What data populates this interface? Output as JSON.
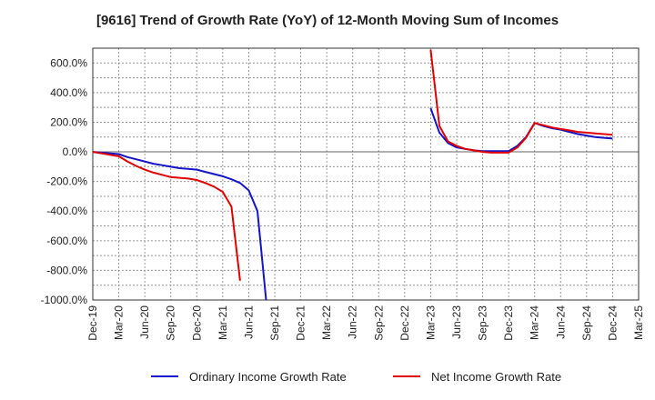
{
  "chart_data": {
    "type": "line",
    "title": "[9616]  Trend of Growth Rate (YoY) of 12-Month Moving Sum of Incomes",
    "xlabel": "",
    "ylabel": "",
    "ylim": [
      -1000,
      700
    ],
    "yticks": [
      600,
      400,
      200,
      0,
      -200,
      -400,
      -600,
      -800,
      -1000
    ],
    "ytick_labels": [
      "600.0%",
      "400.0%",
      "200.0%",
      "0.0%",
      "-200.0%",
      "-400.0%",
      "-600.0%",
      "-800.0%",
      "-1000.0%"
    ],
    "xticks": [
      "Dec-19",
      "Mar-20",
      "Jun-20",
      "Sep-20",
      "Dec-20",
      "Mar-21",
      "Jun-21",
      "Sep-21",
      "Dec-21",
      "Mar-22",
      "Jun-22",
      "Sep-22",
      "Dec-22",
      "Mar-23",
      "Jun-23",
      "Sep-23",
      "Dec-23",
      "Mar-24",
      "Jun-24",
      "Sep-24",
      "Dec-24",
      "Mar-25"
    ],
    "grid": true,
    "legend_position": "bottom",
    "series": [
      {
        "name": "Ordinary Income Growth Rate",
        "color": "#1414c8",
        "points": [
          [
            "Dec-19",
            0
          ],
          [
            "Jan-20",
            -5
          ],
          [
            "Feb-20",
            -10
          ],
          [
            "Mar-20",
            -15
          ],
          [
            "Apr-20",
            -35
          ],
          [
            "May-20",
            -50
          ],
          [
            "Jun-20",
            -65
          ],
          [
            "Jul-20",
            -80
          ],
          [
            "Aug-20",
            -90
          ],
          [
            "Sep-20",
            -100
          ],
          [
            "Oct-20",
            -110
          ],
          [
            "Nov-20",
            -115
          ],
          [
            "Dec-20",
            -120
          ],
          [
            "Jan-21",
            -135
          ],
          [
            "Feb-21",
            -150
          ],
          [
            "Mar-21",
            -165
          ],
          [
            "Apr-21",
            -185
          ],
          [
            "May-21",
            -210
          ],
          [
            "Jun-21",
            -260
          ],
          [
            "Jul-21",
            -400
          ],
          [
            "Aug-21",
            -1000
          ],
          null,
          [
            "Mar-23",
            295
          ],
          [
            "Apr-23",
            130
          ],
          [
            "May-23",
            60
          ],
          [
            "Jun-23",
            30
          ],
          [
            "Jul-23",
            20
          ],
          [
            "Aug-23",
            10
          ],
          [
            "Sep-23",
            5
          ],
          [
            "Oct-23",
            5
          ],
          [
            "Nov-23",
            5
          ],
          [
            "Dec-23",
            5
          ],
          [
            "Jan-24",
            40
          ],
          [
            "Feb-24",
            100
          ],
          [
            "Mar-24",
            195
          ],
          [
            "Apr-24",
            175
          ],
          [
            "May-24",
            160
          ],
          [
            "Jun-24",
            150
          ],
          [
            "Jul-24",
            135
          ],
          [
            "Aug-24",
            120
          ],
          [
            "Sep-24",
            110
          ],
          [
            "Oct-24",
            100
          ],
          [
            "Nov-24",
            95
          ],
          [
            "Dec-24",
            90
          ]
        ]
      },
      {
        "name": "Net Income Growth Rate",
        "color": "#e00000",
        "points": [
          [
            "Dec-19",
            0
          ],
          [
            "Jan-20",
            -10
          ],
          [
            "Feb-20",
            -20
          ],
          [
            "Mar-20",
            -30
          ],
          [
            "Apr-20",
            -65
          ],
          [
            "May-20",
            -95
          ],
          [
            "Jun-20",
            -120
          ],
          [
            "Jul-20",
            -140
          ],
          [
            "Aug-20",
            -155
          ],
          [
            "Sep-20",
            -170
          ],
          [
            "Oct-20",
            -175
          ],
          [
            "Nov-20",
            -180
          ],
          [
            "Dec-20",
            -190
          ],
          [
            "Jan-21",
            -210
          ],
          [
            "Feb-21",
            -235
          ],
          [
            "Mar-21",
            -270
          ],
          [
            "Apr-21",
            -370
          ],
          [
            "May-21",
            -870
          ],
          null,
          [
            "Mar-23",
            690
          ],
          [
            "Apr-23",
            175
          ],
          [
            "May-23",
            70
          ],
          [
            "Jun-23",
            40
          ],
          [
            "Jul-23",
            20
          ],
          [
            "Aug-23",
            10
          ],
          [
            "Sep-23",
            0
          ],
          [
            "Oct-23",
            -5
          ],
          [
            "Nov-23",
            -5
          ],
          [
            "Dec-23",
            -5
          ],
          [
            "Jan-24",
            30
          ],
          [
            "Feb-24",
            95
          ],
          [
            "Mar-24",
            195
          ],
          [
            "Apr-24",
            180
          ],
          [
            "May-24",
            165
          ],
          [
            "Jun-24",
            155
          ],
          [
            "Jul-24",
            145
          ],
          [
            "Aug-24",
            135
          ],
          [
            "Sep-24",
            130
          ],
          [
            "Oct-24",
            125
          ],
          [
            "Nov-24",
            120
          ],
          [
            "Dec-24",
            115
          ]
        ]
      }
    ]
  }
}
